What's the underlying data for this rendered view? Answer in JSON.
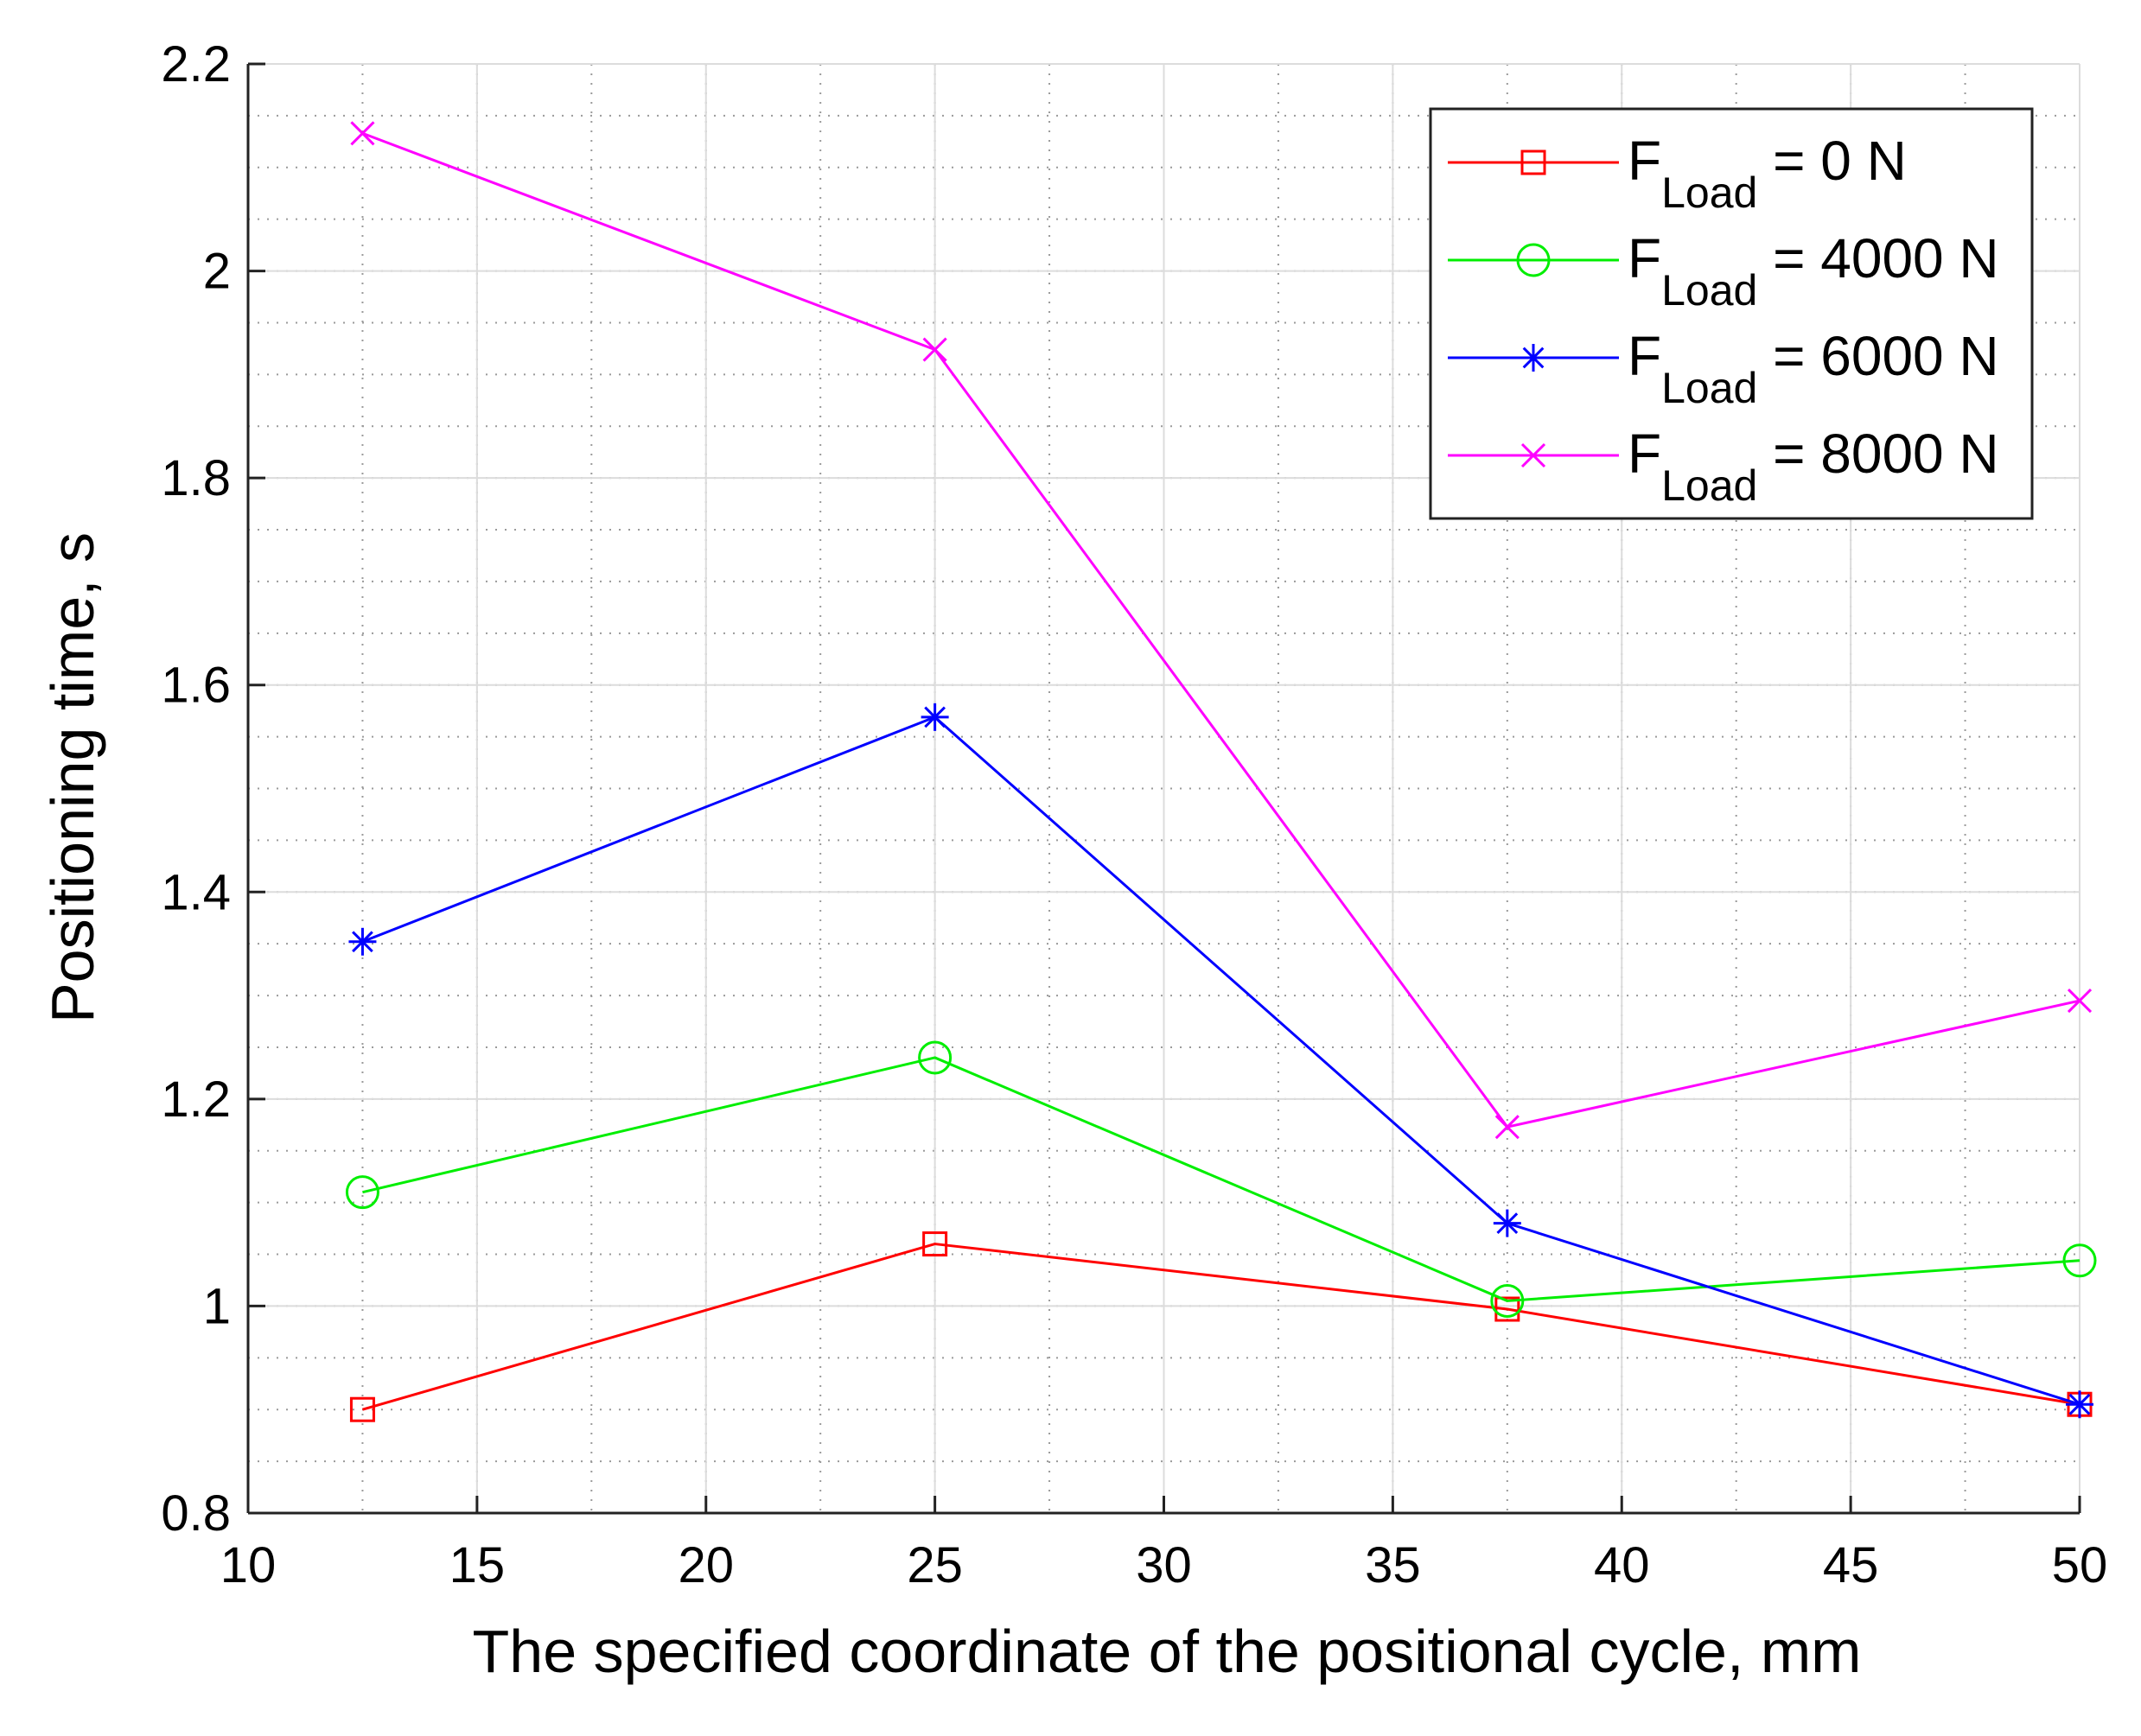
{
  "chart_data": {
    "type": "line",
    "title": "",
    "xlabel": "The specified coordinate of the positional cycle, mm",
    "ylabel": "Positioning time, s",
    "xlim": [
      10,
      50
    ],
    "ylim": [
      0.8,
      2.2
    ],
    "xticks": [
      10,
      15,
      20,
      25,
      30,
      35,
      40,
      45,
      50
    ],
    "xtick_labels": [
      "10",
      "15",
      "20",
      "25",
      "30",
      "35",
      "40",
      "45",
      "50"
    ],
    "yticks": [
      0.8,
      1.0,
      1.2,
      1.4,
      1.6,
      1.8,
      2.0,
      2.2
    ],
    "ytick_labels": [
      "0.8",
      "1",
      "1.2",
      "1.4",
      "1.6",
      "1.8",
      "2",
      "2.2"
    ],
    "x_minor_step": 2.5,
    "y_minor_step": 0.05,
    "grid": true,
    "minor_grid": true,
    "legend_position": "top-right",
    "x": [
      12.5,
      25,
      37.5,
      50
    ],
    "series": [
      {
        "name": "F_Load = 0 N",
        "legend_main": "F",
        "legend_sub": "Load",
        "legend_value": " = 0 N",
        "color": "#ff0000",
        "marker": "square",
        "values": [
          0.9,
          1.06,
          0.997,
          0.905
        ]
      },
      {
        "name": "F_Load = 4000 N",
        "legend_main": "F",
        "legend_sub": "Load",
        "legend_value": " = 4000 N",
        "color": "#00ee00",
        "marker": "circle",
        "values": [
          1.11,
          1.24,
          1.005,
          1.044
        ]
      },
      {
        "name": "F_Load = 6000 N",
        "legend_main": "F",
        "legend_sub": "Load",
        "legend_value": " = 6000 N",
        "color": "#0000ff",
        "marker": "asterisk",
        "values": [
          1.352,
          1.569,
          1.08,
          0.905
        ]
      },
      {
        "name": "F_Load = 8000 N",
        "legend_main": "F",
        "legend_sub": "Load",
        "legend_value": " = 8000 N",
        "color": "#ff00ff",
        "marker": "x",
        "values": [
          2.133,
          1.924,
          1.173,
          1.295
        ]
      }
    ]
  }
}
